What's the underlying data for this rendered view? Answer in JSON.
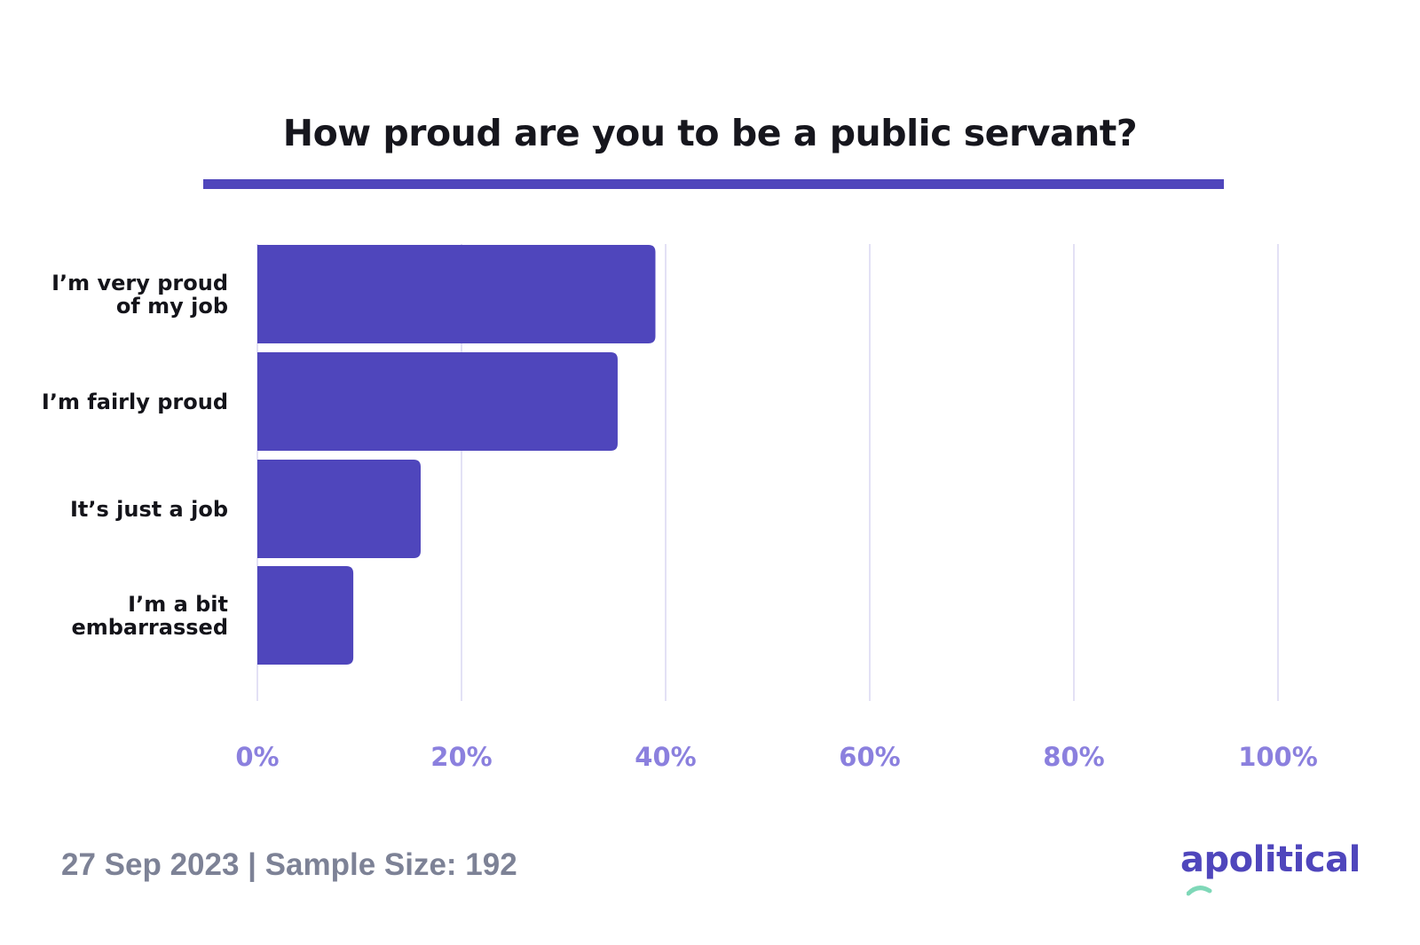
{
  "colors": {
    "bar": "#4f46bc",
    "accent_rule": "#4f46bc",
    "grid": "#e3e1f5",
    "tick_label": "#8b80de",
    "footer": "#7d8296",
    "logo": "#4f46bc",
    "logo_swoosh": "#7fd8b8"
  },
  "chart_data": {
    "type": "bar",
    "orientation": "horizontal",
    "title": "How proud are you to be a public servant?",
    "categories": [
      "I’m very proud\nof my job",
      "I’m fairly proud",
      "It’s just a job",
      "I’m a bit\nembarrassed"
    ],
    "values": [
      39,
      35.3,
      16,
      9.4
    ],
    "unit": "%",
    "xlim": [
      0,
      100
    ],
    "xticks": [
      0,
      20,
      40,
      60,
      80,
      100
    ],
    "xtick_labels": [
      "0%",
      "20%",
      "40%",
      "60%",
      "80%",
      "100%"
    ],
    "grid": "vertical",
    "legend": "none"
  },
  "footer": {
    "text": "27 Sep 2023 | Sample Size: 192"
  },
  "logo": {
    "text": "apolitical"
  }
}
